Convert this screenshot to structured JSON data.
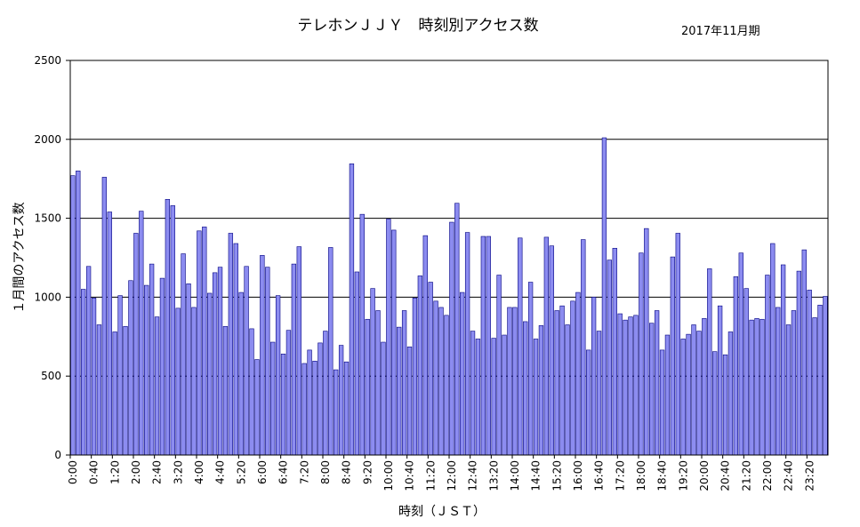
{
  "chart_data": {
    "type": "bar",
    "title": "テレホンＪＪＹ　時刻別アクセス数",
    "subtitle": "2017年11月期",
    "xlabel": "時刻（ＪＳＴ）",
    "ylabel": "１月間のアクセス数",
    "ylim": [
      0,
      2500
    ],
    "yticks": [
      0,
      500,
      1000,
      1500,
      2000,
      2500
    ],
    "grid": "horizontal",
    "bar_color": "#8c8cf0",
    "bar_edge_color": "#000080",
    "x_tick_labels": [
      "0:00",
      "0:40",
      "1:20",
      "2:00",
      "2:40",
      "3:20",
      "4:00",
      "4:40",
      "5:20",
      "6:00",
      "6:40",
      "7:20",
      "8:00",
      "8:40",
      "9:20",
      "10:00",
      "10:40",
      "11:20",
      "12:00",
      "12:40",
      "13:20",
      "14:00",
      "14:40",
      "15:20",
      "16:00",
      "16:40",
      "17:20",
      "18:00",
      "18:40",
      "19:20",
      "20:00",
      "20:40",
      "21:20",
      "22:00",
      "22:40",
      "23:20"
    ],
    "bin_minutes": 10,
    "values": [
      1770,
      1800,
      1050,
      1195,
      995,
      825,
      1760,
      1540,
      780,
      1010,
      815,
      1105,
      1405,
      1545,
      1075,
      1210,
      875,
      1120,
      1620,
      1580,
      930,
      1275,
      1085,
      935,
      1420,
      1445,
      1025,
      1155,
      1190,
      815,
      1405,
      1340,
      1030,
      1195,
      800,
      605,
      1265,
      1190,
      715,
      1010,
      640,
      790,
      1210,
      1320,
      580,
      665,
      595,
      710,
      785,
      1315,
      540,
      695,
      590,
      1845,
      1160,
      1525,
      860,
      1055,
      915,
      715,
      1495,
      1425,
      810,
      915,
      685,
      995,
      1135,
      1390,
      1095,
      975,
      935,
      885,
      1475,
      1595,
      1030,
      1410,
      785,
      735,
      1385,
      1385,
      740,
      1140,
      760,
      935,
      935,
      1375,
      845,
      1095,
      735,
      820,
      1380,
      1325,
      915,
      945,
      825,
      975,
      1030,
      1365,
      665,
      1000,
      785,
      2010,
      1235,
      1310,
      895,
      855,
      875,
      885,
      1280,
      1435,
      835,
      915,
      665,
      760,
      1255,
      1405,
      735,
      765,
      825,
      785,
      865,
      1180,
      655,
      945,
      635,
      780,
      1130,
      1280,
      1055,
      855,
      865,
      860,
      1140,
      1340,
      935,
      1205,
      825,
      915,
      1165,
      1300,
      1045,
      870,
      950,
      1005
    ]
  }
}
